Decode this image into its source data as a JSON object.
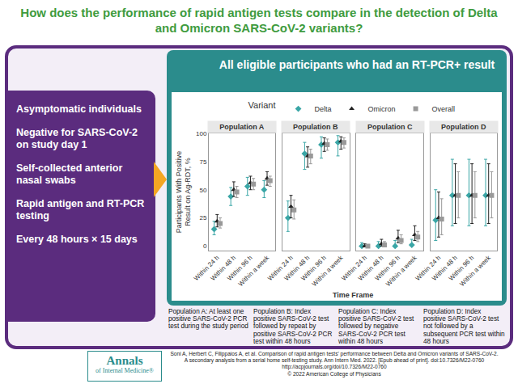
{
  "header": {
    "title": "How does the performance of rapid antigen tests compare in the detection of Delta and Omicron SARS-CoV-2 variants?"
  },
  "left_panel": {
    "items": [
      "Asymptomatic individuals",
      "Negative for SARS-CoV-2 on study day 1",
      "Self-collected anterior nasal swabs",
      "Rapid antigen and RT-PCR testing",
      "Every 48 hours × 15 days"
    ]
  },
  "chart_data": {
    "type": "scatter",
    "title": "All eligible participants who had an RT-PCR+ result",
    "legend_title": "Variant",
    "legend": "top",
    "x_label": "Time Frame",
    "y_label": [
      "Participants With Positive",
      "Result on Ag-RDT, %"
    ],
    "categories": [
      "Within 24 h",
      "Within 48 h",
      "Within 96 h",
      "Within a week"
    ],
    "ylim": [
      -4,
      100
    ],
    "yticks": [
      0,
      25,
      50,
      75,
      100
    ],
    "grid": false,
    "panels": [
      {
        "title": "Population A",
        "series": [
          {
            "name": "Delta",
            "color": "#3aa6a6",
            "marker": "diamond",
            "values": [
              15,
              44,
              53,
              50
            ],
            "lower": [
              10,
              36,
              45,
              43
            ],
            "upper": [
              22,
              52,
              61,
              58
            ]
          },
          {
            "name": "Omicron",
            "color": "#222222",
            "marker": "triangle-up",
            "values": [
              22,
              50,
              56,
              60
            ],
            "lower": [
              17,
              44,
              50,
              54
            ],
            "upper": [
              28,
              57,
              62,
              66
            ]
          },
          {
            "name": "Overall",
            "color": "#999999",
            "marker": "square",
            "values": [
              20,
              48,
              55,
              58
            ],
            "lower": [
              16,
              43,
              50,
              53
            ],
            "upper": [
              25,
              53,
              60,
              62
            ]
          }
        ]
      },
      {
        "title": "Population B",
        "series": [
          {
            "name": "Delta",
            "color": "#3aa6a6",
            "marker": "diamond",
            "values": [
              25,
              82,
              90,
              92
            ],
            "lower": [
              13,
              68,
              78,
              80
            ],
            "upper": [
              40,
              92,
              97,
              98
            ]
          },
          {
            "name": "Omicron",
            "color": "#222222",
            "marker": "triangle-up",
            "values": [
              35,
              80,
              91,
              93
            ],
            "lower": [
              25,
              70,
              84,
              86
            ],
            "upper": [
              45,
              88,
              96,
              97
            ]
          },
          {
            "name": "Overall",
            "color": "#999999",
            "marker": "square",
            "values": [
              32,
              80,
              90,
              92
            ],
            "lower": [
              24,
              73,
              85,
              87
            ],
            "upper": [
              41,
              86,
              95,
              96
            ]
          }
        ]
      },
      {
        "title": "Population C",
        "series": [
          {
            "name": "Delta",
            "color": "#3aa6a6",
            "marker": "diamond",
            "values": [
              0,
              0,
              0,
              1
            ],
            "lower": [
              0,
              0,
              0,
              0
            ],
            "upper": [
              3,
              4,
              5,
              6
            ]
          },
          {
            "name": "Omicron",
            "color": "#222222",
            "marker": "triangle-up",
            "values": [
              0,
              2,
              7,
              10
            ],
            "lower": [
              0,
              0,
              3,
              5
            ],
            "upper": [
              2,
              6,
              14,
              18
            ]
          },
          {
            "name": "Overall",
            "color": "#999999",
            "marker": "square",
            "values": [
              0,
              1,
              5,
              8
            ],
            "lower": [
              0,
              0,
              2,
              4
            ],
            "upper": [
              1,
              4,
              10,
              13
            ]
          }
        ]
      },
      {
        "title": "Population D",
        "series": [
          {
            "name": "Delta",
            "color": "#3aa6a6",
            "marker": "diamond",
            "values": [
              23,
              45,
              45,
              45
            ],
            "lower": [
              5,
              18,
              18,
              18
            ],
            "upper": [
              50,
              77,
              77,
              77
            ]
          },
          {
            "name": "Omicron",
            "color": "#222222",
            "marker": "triangle-up",
            "values": [
              25,
              45,
              45,
              45
            ],
            "lower": [
              8,
              20,
              20,
              20
            ],
            "upper": [
              48,
              73,
              73,
              73
            ]
          },
          {
            "name": "Overall",
            "color": "#999999",
            "marker": "square",
            "values": [
              24,
              45,
              45,
              45
            ],
            "lower": [
              10,
              25,
              25,
              25
            ],
            "upper": [
              42,
              66,
              66,
              66
            ]
          }
        ]
      }
    ]
  },
  "captions": [
    "Population A: At least one positive SARS-CoV-2 PCR test during the study period",
    "Population B: Index positive SARS-CoV-2 test followed by repeat by positive SARS-CoV-2 PCR test within 48 hours",
    "Population C: Index positive SARS-CoV-2 test followed by negative SARS-CoV-2 PCR test within 48 hours",
    "Population D: Index positive SARS-CoV-2 test not followed by a subsequent PCR test within 48 hours"
  ],
  "footer": {
    "logo": [
      "Annals",
      "of Internal Medicine®"
    ],
    "citation": [
      "Soni A, Herbert C, Filippaios A, et al. Comparison of rapid antigen tests' performance between Delta and Omicron variants of SARS-CoV-2. A secondary analysis from a serial home self-testing study. Ann Intern Med. 2022. [Epub ahead of print]. doi:10.7326/M22-0760",
      "http://acpjournals.org/doi/10.7326/M22-0760",
      "© 2022 American College of Physicians"
    ]
  }
}
